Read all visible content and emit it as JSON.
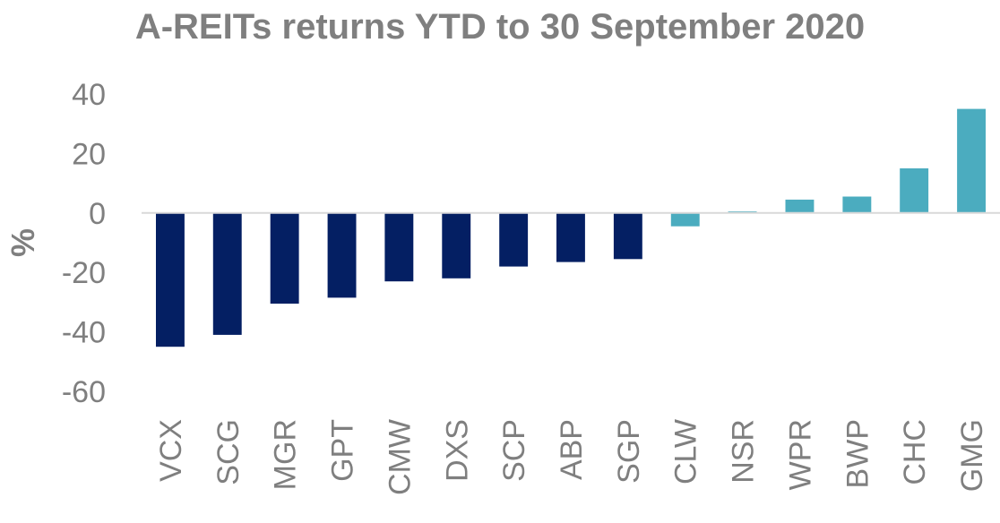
{
  "chart_data": {
    "type": "bar",
    "title": "A-REITs returns YTD to 30 September 2020",
    "xlabel": "",
    "ylabel": "%",
    "categories": [
      "VCX",
      "SCG",
      "MGR",
      "GPT",
      "CMW",
      "DXS",
      "SCP",
      "ABP",
      "SGP",
      "CLW",
      "NSR",
      "WPR",
      "BWP",
      "CHC",
      "GMG"
    ],
    "values": [
      -45,
      -41,
      -30.5,
      -28.5,
      -23,
      -22,
      -18,
      -16.5,
      -15.5,
      -4.5,
      0.5,
      4.5,
      5.5,
      15,
      35
    ],
    "yticks": [
      40,
      20,
      0,
      -20,
      -40,
      -60
    ],
    "ylim": [
      -60,
      40
    ],
    "grid": false,
    "colors": {
      "dark_bars": "#041f63",
      "light_bars": "#4bacbf",
      "axis": "#d9d9d9",
      "text": "#7f7f7f"
    },
    "dark_bar_count": 9
  }
}
